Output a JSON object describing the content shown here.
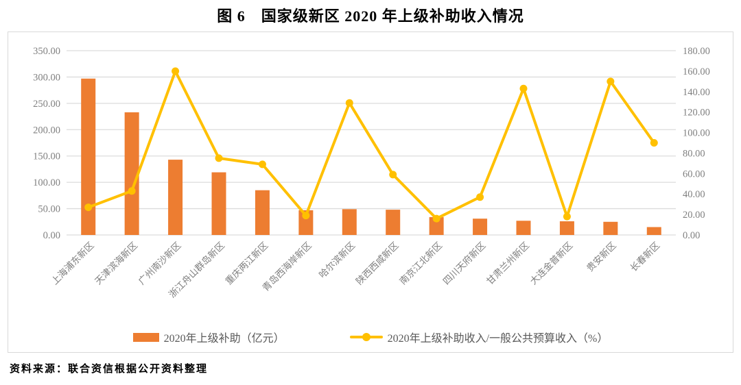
{
  "title": "图 6　国家级新区 2020 年上级补助收入情况",
  "source": "资料来源：联合资信根据公开资料整理",
  "colors": {
    "bar": "#ED7D31",
    "line": "#FFC000",
    "grid": "#DCDCDC",
    "axis_text": "#7F7F7F",
    "border": "#D9D9D9",
    "legend_text": "#595959"
  },
  "chart_data": {
    "type": "bar",
    "subtype": "bar-line-combo",
    "title": "图 6　国家级新区 2020 年上级补助收入情况",
    "categories": [
      "上海浦东新区",
      "天津滨海新区",
      "广州南沙新区",
      "浙江舟山群岛新区",
      "重庆两江新区",
      "青岛西海岸新区",
      "哈尔滨新区",
      "陕西西咸新区",
      "南京江北新区",
      "四川天府新区",
      "甘肃兰州新区",
      "大连金普新区",
      "贵安新区",
      "长春新区"
    ],
    "series": [
      {
        "name": "2020年上级补助（亿元）",
        "type": "bar",
        "axis": "left",
        "values": [
          297,
          233,
          143,
          119,
          85,
          47,
          49,
          48,
          34,
          31,
          27,
          26,
          25,
          15
        ]
      },
      {
        "name": "2020年上级补助收入/一般公共预算收入（%）",
        "type": "line",
        "axis": "right",
        "values": [
          27,
          43,
          160,
          75,
          69,
          19,
          129,
          59,
          16,
          37,
          143,
          18,
          150,
          90
        ]
      }
    ],
    "left_axis": {
      "min": 0,
      "max": 350,
      "step": 50,
      "decimals": 2
    },
    "right_axis": {
      "min": 0,
      "max": 180,
      "step": 20,
      "decimals": 2
    },
    "grid": true,
    "legend_position": "bottom",
    "x_label_rotation": -45
  }
}
